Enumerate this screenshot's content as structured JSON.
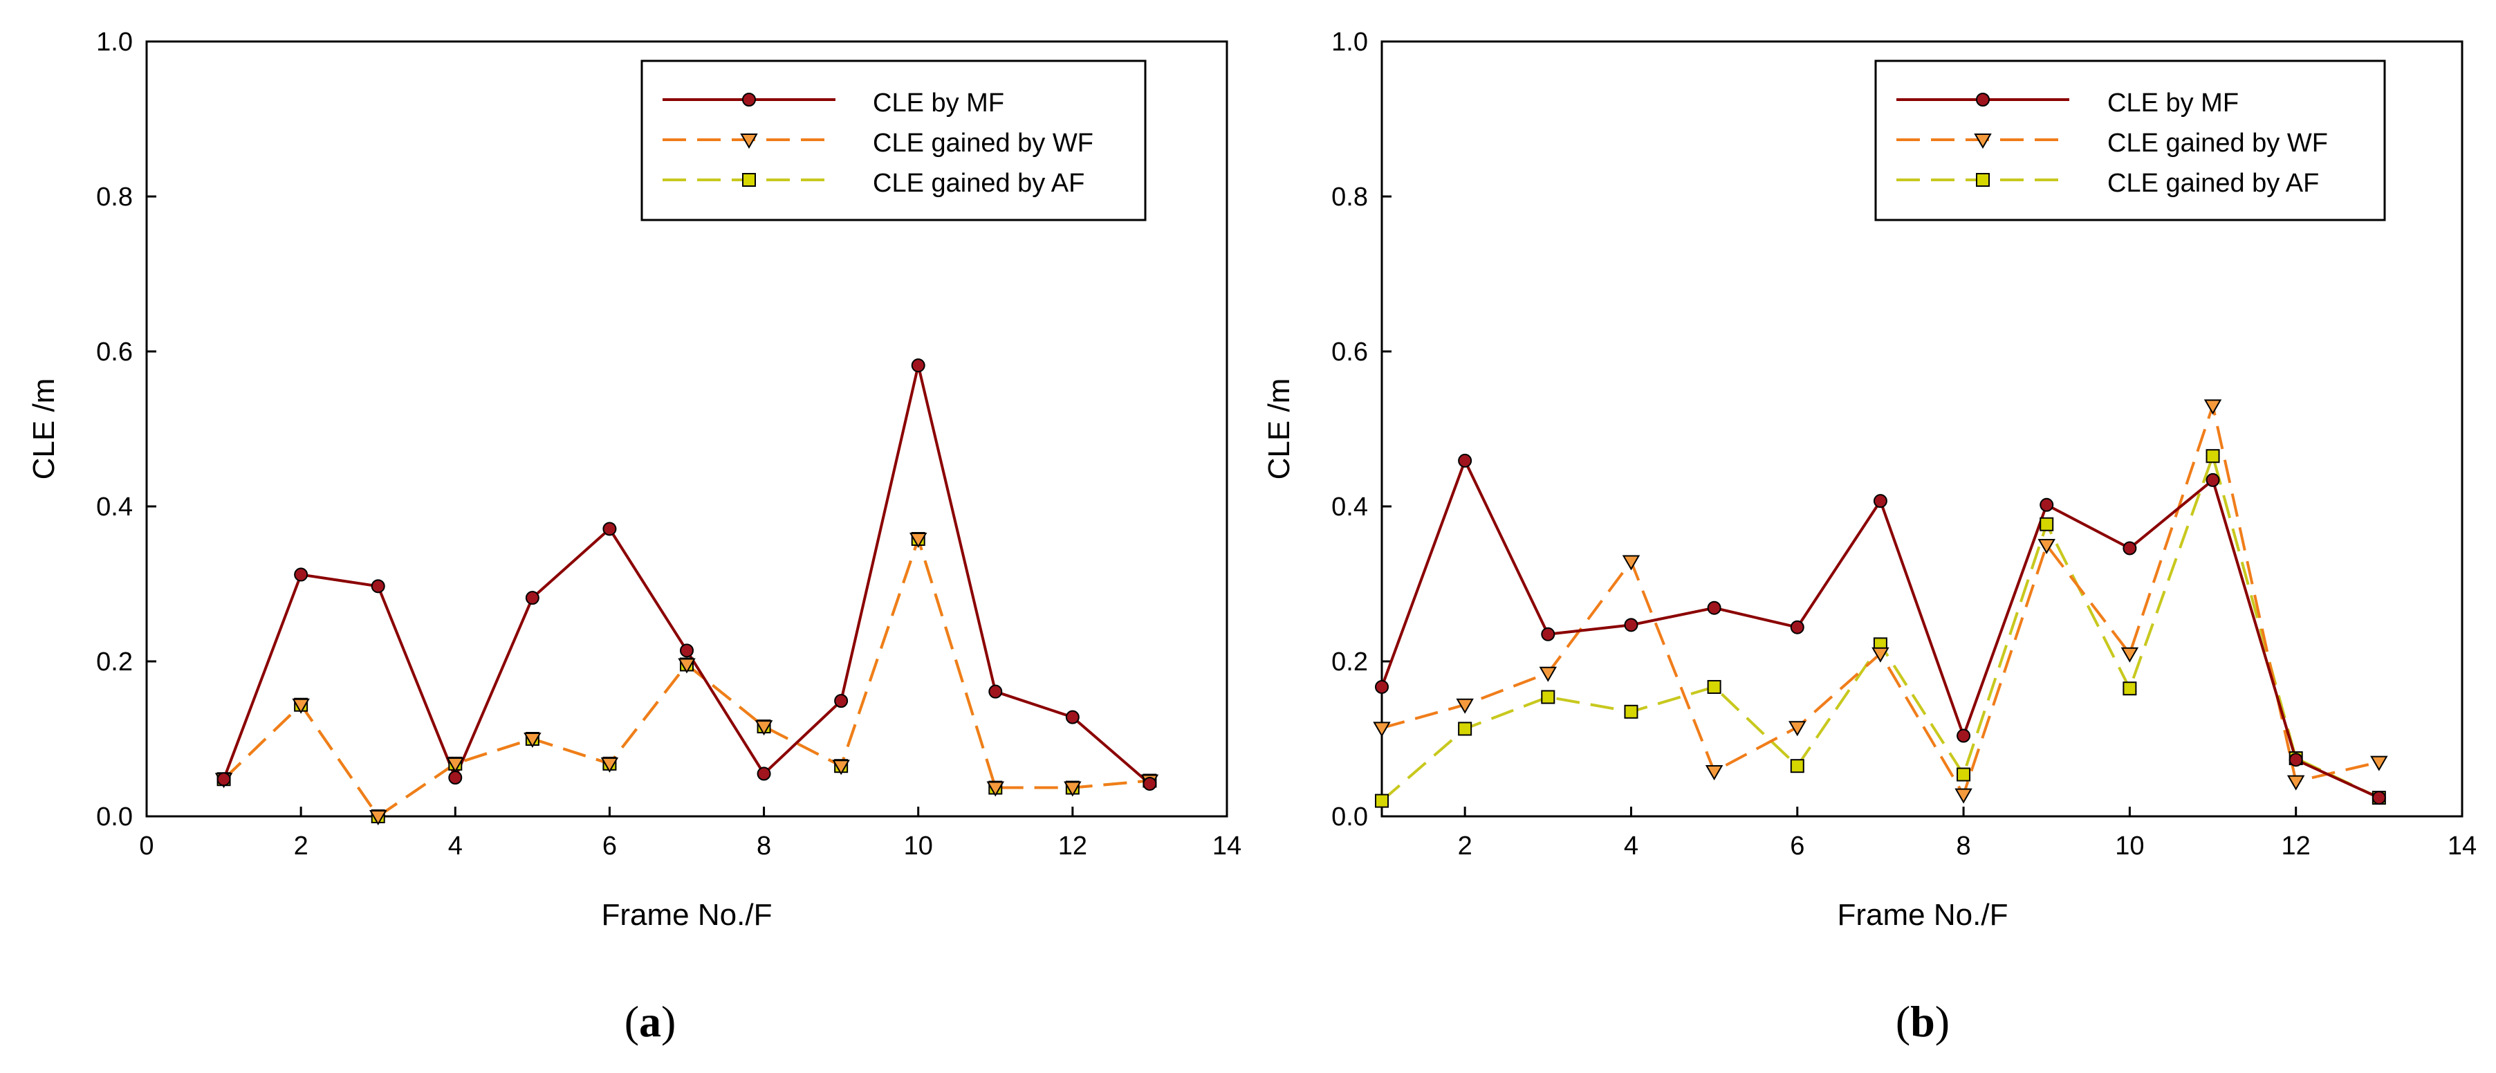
{
  "chart_data": [
    {
      "type": "line",
      "panel_label": "a",
      "xlabel": "Frame No./F",
      "ylabel": "CLE /m",
      "xlim": [
        0,
        14
      ],
      "ylim": [
        0,
        1.0
      ],
      "xticks": [
        0,
        2,
        4,
        6,
        8,
        10,
        12,
        14
      ],
      "yticks": [
        0.0,
        0.2,
        0.4,
        0.6,
        0.8,
        1.0
      ],
      "xtick_labels": [
        "0",
        "2",
        "4",
        "6",
        "8",
        "10",
        "12",
        "14"
      ],
      "ytick_labels": [
        "0.0",
        "0.2",
        "0.4",
        "0.6",
        "0.8",
        "1.0"
      ],
      "legend_position": "top-right",
      "x": [
        1,
        2,
        3,
        4,
        5,
        6,
        7,
        8,
        9,
        10,
        11,
        12,
        13
      ],
      "series": [
        {
          "name": "CLE by MF",
          "style": "solid",
          "marker": "circle",
          "color": "#8b0000",
          "marker_fill": "#a0141e",
          "values": [
            0.048,
            0.312,
            0.297,
            0.05,
            0.282,
            0.371,
            0.214,
            0.055,
            0.149,
            0.582,
            0.161,
            0.128,
            0.042
          ]
        },
        {
          "name": "CLE gained by WF",
          "style": "dashed",
          "marker": "triangle-down",
          "color": "#f07d1a",
          "marker_fill": "#f59a3c",
          "values": [
            0.048,
            0.144,
            0.0,
            0.068,
            0.1,
            0.068,
            0.196,
            0.116,
            0.065,
            0.358,
            0.037,
            0.037,
            0.046
          ]
        },
        {
          "name": "CLE gained by AF",
          "style": "dashed",
          "marker": "square",
          "color": "#c8c81e",
          "marker_fill": "#d6d600",
          "values": [
            0.048,
            0.144,
            0.0,
            0.068,
            0.1,
            0.068,
            0.196,
            0.116,
            0.065,
            0.358,
            0.037,
            0.037,
            0.046
          ]
        }
      ]
    },
    {
      "type": "line",
      "panel_label": "b",
      "xlabel": "Frame No./F",
      "ylabel": "CLE /m",
      "xlim": [
        1,
        14
      ],
      "ylim": [
        0,
        1.0
      ],
      "xticks": [
        2,
        4,
        6,
        8,
        10,
        12,
        14
      ],
      "yticks": [
        0.0,
        0.2,
        0.4,
        0.6,
        0.8,
        1.0
      ],
      "xtick_labels": [
        "2",
        "4",
        "6",
        "8",
        "10",
        "12",
        "14"
      ],
      "ytick_labels": [
        "0.0",
        "0.2",
        "0.4",
        "0.6",
        "0.8",
        "1.0"
      ],
      "legend_position": "top-right",
      "x": [
        1,
        2,
        3,
        4,
        5,
        6,
        7,
        8,
        9,
        10,
        11,
        12,
        13
      ],
      "series": [
        {
          "name": "CLE by MF",
          "style": "solid",
          "marker": "circle",
          "color": "#8b0000",
          "marker_fill": "#a0141e",
          "values": [
            0.167,
            0.459,
            0.235,
            0.247,
            0.269,
            0.244,
            0.407,
            0.104,
            0.402,
            0.346,
            0.434,
            0.073,
            0.024
          ]
        },
        {
          "name": "CLE gained by WF",
          "style": "dashed",
          "marker": "triangle-down",
          "color": "#f07d1a",
          "marker_fill": "#f59a3c",
          "values": [
            0.114,
            0.144,
            0.185,
            0.329,
            0.058,
            0.115,
            0.21,
            0.028,
            0.35,
            0.21,
            0.53,
            0.045,
            0.07
          ]
        },
        {
          "name": "CLE gained by AF",
          "style": "dashed",
          "marker": "square",
          "color": "#c8c81e",
          "marker_fill": "#d6d600",
          "values": [
            0.02,
            0.113,
            0.154,
            0.135,
            0.167,
            0.065,
            0.222,
            0.054,
            0.377,
            0.165,
            0.465,
            0.075,
            0.024
          ]
        }
      ]
    }
  ]
}
